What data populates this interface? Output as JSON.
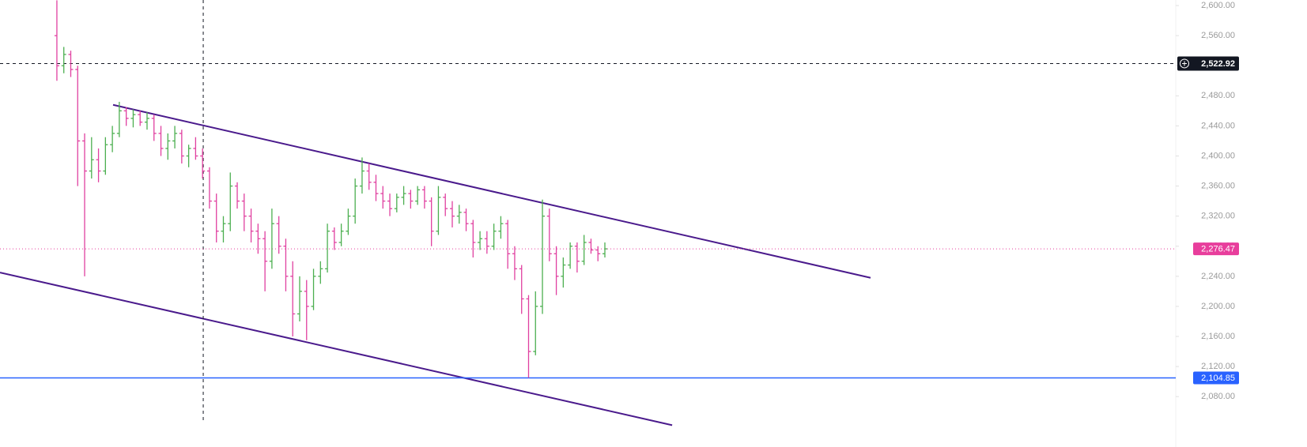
{
  "chart_data": {
    "type": "ohlc",
    "up_color": "#4caf50",
    "down_color": "#e040a0",
    "open": [
      2560,
      2520,
      2535,
      2515,
      2420,
      2380,
      2395,
      2380,
      2415,
      2430,
      2460,
      2450,
      2455,
      2445,
      2450,
      2430,
      2410,
      2420,
      2430,
      2400,
      2410,
      2400,
      2380,
      2340,
      2300,
      2310,
      2360,
      2340,
      2320,
      2300,
      2290,
      2260,
      2310,
      2280,
      2240,
      2190,
      2220,
      2200,
      2240,
      2250,
      2300,
      2285,
      2300,
      2320,
      2360,
      2380,
      2365,
      2350,
      2340,
      2330,
      2345,
      2350,
      2340,
      2355,
      2340,
      2300,
      2345,
      2330,
      2320,
      2325,
      2310,
      2285,
      2290,
      2280,
      2300,
      2310,
      2270,
      2250,
      2210,
      2140,
      2200,
      2320,
      2270,
      2240,
      2255,
      2280,
      2260,
      2285,
      2275,
      2270
    ],
    "high": [
      2607,
      2545,
      2540,
      2520,
      2430,
      2425,
      2410,
      2425,
      2440,
      2472,
      2465,
      2462,
      2460,
      2458,
      2455,
      2440,
      2430,
      2440,
      2435,
      2415,
      2425,
      2410,
      2385,
      2350,
      2320,
      2378,
      2365,
      2350,
      2330,
      2310,
      2300,
      2330,
      2320,
      2290,
      2260,
      2240,
      2235,
      2250,
      2260,
      2310,
      2305,
      2310,
      2330,
      2370,
      2398,
      2390,
      2375,
      2360,
      2350,
      2350,
      2360,
      2355,
      2360,
      2360,
      2345,
      2360,
      2350,
      2340,
      2335,
      2330,
      2315,
      2300,
      2300,
      2310,
      2320,
      2315,
      2280,
      2255,
      2215,
      2220,
      2342,
      2330,
      2280,
      2265,
      2285,
      2285,
      2295,
      2290,
      2280,
      2285
    ],
    "low": [
      2500,
      2510,
      2505,
      2360,
      2240,
      2370,
      2365,
      2375,
      2405,
      2425,
      2440,
      2438,
      2440,
      2435,
      2420,
      2400,
      2395,
      2410,
      2390,
      2385,
      2395,
      2370,
      2330,
      2285,
      2285,
      2300,
      2330,
      2300,
      2285,
      2270,
      2220,
      2250,
      2270,
      2220,
      2160,
      2180,
      2155,
      2195,
      2230,
      2245,
      2275,
      2280,
      2295,
      2310,
      2350,
      2355,
      2340,
      2330,
      2320,
      2325,
      2335,
      2330,
      2335,
      2330,
      2280,
      2295,
      2320,
      2305,
      2310,
      2300,
      2265,
      2275,
      2270,
      2275,
      2290,
      2250,
      2235,
      2190,
      2105,
      2135,
      2190,
      2260,
      2215,
      2225,
      2250,
      2245,
      2255,
      2270,
      2260,
      2265
    ],
    "close": [
      2520,
      2535,
      2515,
      2420,
      2380,
      2395,
      2380,
      2415,
      2430,
      2460,
      2450,
      2455,
      2445,
      2450,
      2430,
      2410,
      2420,
      2430,
      2400,
      2410,
      2400,
      2380,
      2340,
      2300,
      2310,
      2360,
      2340,
      2320,
      2300,
      2290,
      2260,
      2310,
      2280,
      2240,
      2190,
      2220,
      2200,
      2240,
      2250,
      2300,
      2285,
      2300,
      2320,
      2360,
      2380,
      2365,
      2350,
      2340,
      2330,
      2345,
      2350,
      2340,
      2355,
      2340,
      2300,
      2345,
      2330,
      2320,
      2325,
      2310,
      2285,
      2290,
      2280,
      2300,
      2310,
      2270,
      2250,
      2210,
      2140,
      2200,
      2320,
      2270,
      2240,
      2255,
      2280,
      2260,
      2285,
      2275,
      2270,
      2276.47
    ],
    "xlim": [
      -8.2,
      161.3
    ],
    "ylim": [
      2013,
      2607.4
    ],
    "yticks": [
      {
        "value": 2080,
        "label": "2,080.00"
      },
      {
        "value": 2120,
        "label": "2,120.00"
      },
      {
        "value": 2160,
        "label": "2,160.00"
      },
      {
        "value": 2200,
        "label": "2,200.00"
      },
      {
        "value": 2240,
        "label": "2,240.00"
      },
      {
        "value": 2280,
        "label": "2,280.00"
      },
      {
        "value": 2320,
        "label": "2,320.00"
      },
      {
        "value": 2360,
        "label": "2,360.00"
      },
      {
        "value": 2400,
        "label": "2,400.00"
      },
      {
        "value": 2440,
        "label": "2,440.00"
      },
      {
        "value": 2480,
        "label": "2,480.00"
      },
      {
        "value": 2520,
        "label": "2,520.00"
      },
      {
        "value": 2560,
        "label": "2,560.00"
      },
      {
        "value": 2600,
        "label": "2,600.00"
      }
    ],
    "price_lines": [
      {
        "value": 2276.47,
        "label": "2,276.47",
        "color": "#e83e9c",
        "style": "dotted"
      },
      {
        "value": 2104.85,
        "label": "2,104.85",
        "color": "#2962ff",
        "style": "solid"
      }
    ],
    "crosshair": {
      "x": 21.1,
      "value": 2522.92,
      "label": "2,522.92",
      "color": "#131722"
    },
    "trendlines": [
      {
        "color": "#4a1a8c",
        "x": [
          8.1,
          117.3
        ],
        "values": [
          2468,
          2238
        ]
      },
      {
        "color": "#4a1a8c",
        "x": [
          -8.2,
          88.7
        ],
        "values": [
          2245,
          2042
        ]
      }
    ]
  }
}
